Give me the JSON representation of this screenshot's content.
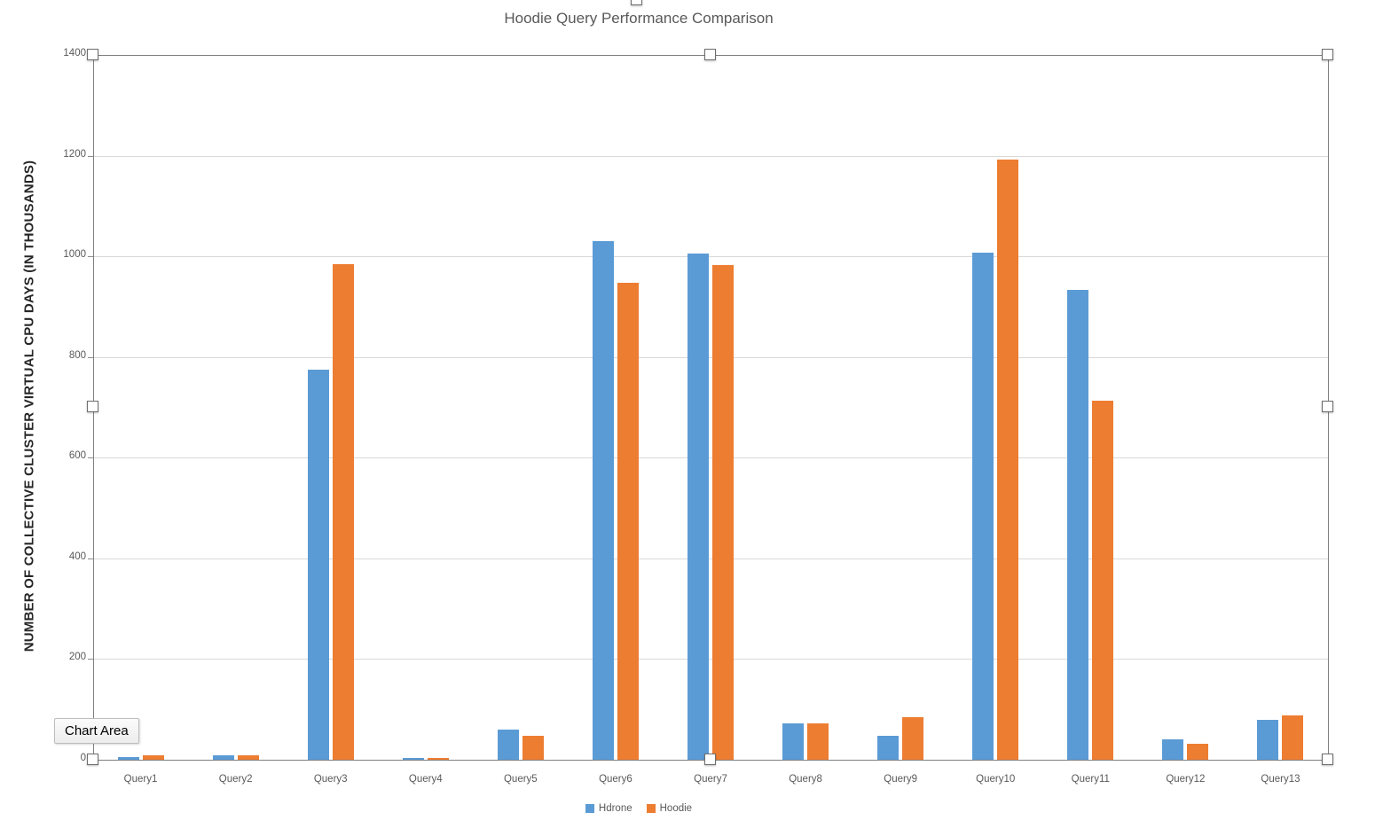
{
  "chart": {
    "title": "Hoodie Query Performance Comparison",
    "tooltip_label": "Chart Area"
  },
  "chart_data": {
    "type": "bar",
    "title": "Hoodie Query Performance Comparison",
    "xlabel": "",
    "ylabel": "NUMBER OF COLLECTIVE CLUSTER VIRTUAL CPU DAYS (IN THOUSANDS)",
    "ylim": [
      0,
      1400
    ],
    "yticks": [
      0,
      200,
      400,
      600,
      800,
      1000,
      1200,
      1400
    ],
    "grid": true,
    "legend_position": "bottom",
    "categories": [
      "Query1",
      "Query2",
      "Query3",
      "Query4",
      "Query5",
      "Query6",
      "Query7",
      "Query8",
      "Query9",
      "Query10",
      "Query11",
      "Query12",
      "Query13"
    ],
    "series": [
      {
        "name": "Hdrone",
        "color": "#5B9BD5",
        "values": [
          5,
          8,
          775,
          4,
          60,
          1030,
          1005,
          72,
          48,
          1007,
          933,
          40,
          79
        ]
      },
      {
        "name": "Hoodie",
        "color": "#ED7D31",
        "values": [
          9,
          8,
          985,
          4,
          48,
          948,
          983,
          72,
          85,
          1192,
          714,
          32,
          88
        ]
      }
    ],
    "colors": {
      "gridline": "#D9D9D9",
      "axis_line": "#808080",
      "tick_text": "#595959",
      "title_text": "#595959"
    }
  },
  "selection": {
    "state": "chart-area-selected",
    "handle_positions": [
      "top-left",
      "top-center",
      "top-right",
      "mid-left",
      "mid-right",
      "bottom-left",
      "bottom-center",
      "bottom-right",
      "object-top-center"
    ]
  }
}
